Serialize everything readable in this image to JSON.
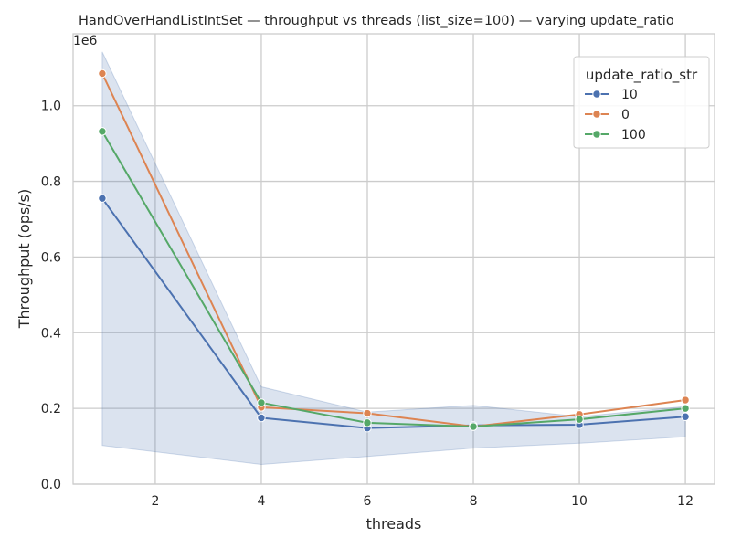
{
  "chart_data": {
    "type": "line",
    "title": "HandOverHandListIntSet — throughput vs threads (list_size=100) — varying update_ratio",
    "xlabel": "threads",
    "ylabel": "Throughput (ops/s)",
    "y_scale_label": "1e6",
    "xlim": [
      0.45,
      12.55
    ],
    "ylim": [
      0,
      1.19
    ],
    "x_ticks": [
      2,
      4,
      6,
      8,
      10,
      12
    ],
    "y_ticks": [
      0.0,
      0.2,
      0.4,
      0.6,
      0.8,
      1.0
    ],
    "x_tick_labels": [
      "2",
      "4",
      "6",
      "8",
      "10",
      "12"
    ],
    "y_tick_labels": [
      "0.0",
      "0.2",
      "0.4",
      "0.6",
      "0.8",
      "1.0"
    ],
    "grid": true,
    "legend": {
      "title": "update_ratio_str",
      "placement": "top-right"
    },
    "x": [
      1,
      4,
      6,
      8,
      10,
      12
    ],
    "series": [
      {
        "name": "10",
        "color": "#4c72b0",
        "values": [
          0.755,
          0.175,
          0.148,
          0.155,
          0.157,
          0.178
        ]
      },
      {
        "name": "0",
        "color": "#dd8452",
        "values": [
          1.085,
          0.203,
          0.187,
          0.152,
          0.184,
          0.222
        ]
      },
      {
        "name": "100",
        "color": "#55a868",
        "values": [
          0.932,
          0.215,
          0.162,
          0.152,
          0.171,
          0.2
        ]
      }
    ],
    "confidence_band": {
      "series": "10",
      "color": "#4c72b0",
      "lower": [
        0.102,
        0.052,
        0.073,
        0.095,
        0.108,
        0.125
      ],
      "upper": [
        1.142,
        0.257,
        0.19,
        0.208,
        0.178,
        0.205
      ]
    }
  }
}
